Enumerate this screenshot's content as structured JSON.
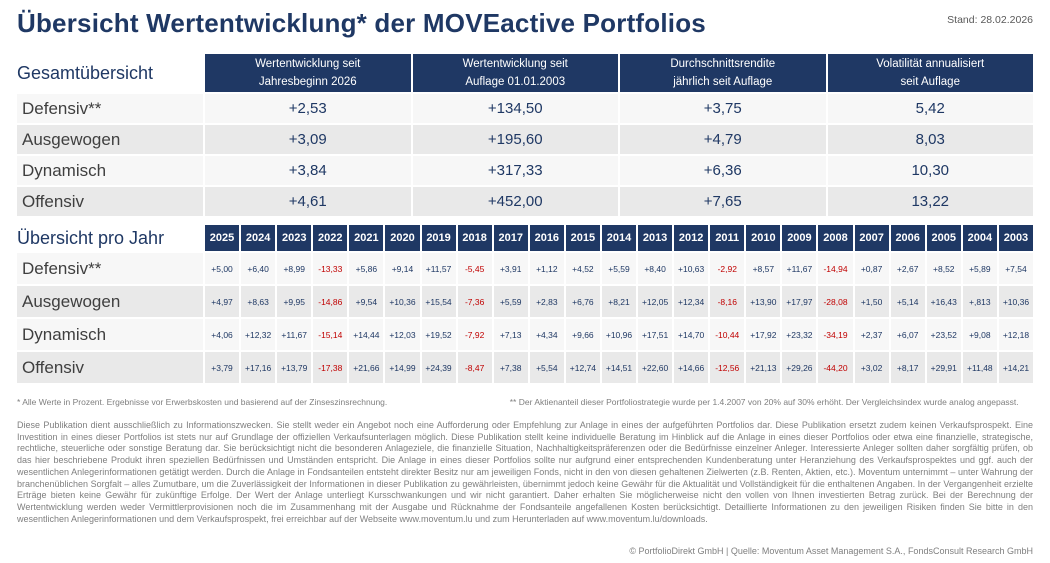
{
  "page": {
    "title": "Übersicht Wertentwicklung* der MOVEactive Portfolios",
    "stand": "Stand: 28.02.2026"
  },
  "colors": {
    "navy": "#1F3864",
    "negative_red": "#C00000",
    "row_light": "#F7F7F7",
    "row_dark": "#E9E9E9",
    "muted_text": "#7F7F7F"
  },
  "overview": {
    "section_label": "Gesamtübersicht",
    "columns": [
      {
        "line1": "Wertentwicklung seit",
        "line2": "Jahresbeginn 2026"
      },
      {
        "line1": "Wertentwicklung seit",
        "line2": "Auflage 01.01.2003"
      },
      {
        "line1": "Durchschnittsrendite",
        "line2": "jährlich seit Auflage"
      },
      {
        "line1": "Volatilität annualisiert",
        "line2": "seit Auflage"
      }
    ],
    "rows": [
      {
        "label": "Defensiv**",
        "values": [
          "+2,53",
          "+134,50",
          "+3,75",
          "5,42"
        ]
      },
      {
        "label": "Ausgewogen",
        "values": [
          "+3,09",
          "+195,60",
          "+4,79",
          "8,03"
        ]
      },
      {
        "label": "Dynamisch",
        "values": [
          "+3,84",
          "+317,33",
          "+6,36",
          "10,30"
        ]
      },
      {
        "label": "Offensiv",
        "values": [
          "+4,61",
          "+452,00",
          "+7,65",
          "13,22"
        ]
      }
    ]
  },
  "per_year": {
    "section_label": "Übersicht pro Jahr",
    "years": [
      "2025",
      "2024",
      "2023",
      "2022",
      "2021",
      "2020",
      "2019",
      "2018",
      "2017",
      "2016",
      "2015",
      "2014",
      "2013",
      "2012",
      "2011",
      "2010",
      "2009",
      "2008",
      "2007",
      "2006",
      "2005",
      "2004",
      "2003"
    ],
    "rows": [
      {
        "label": "Defensiv**",
        "values": [
          "+5,00",
          "+6,40",
          "+8,99",
          "-13,33",
          "+5,86",
          "+9,14",
          "+11,57",
          "-5,45",
          "+3,91",
          "+1,12",
          "+4,52",
          "+5,59",
          "+8,40",
          "+10,63",
          "-2,92",
          "+8,57",
          "+11,67",
          "-14,94",
          "+0,87",
          "+2,67",
          "+8,52",
          "+5,89",
          "+7,54"
        ]
      },
      {
        "label": "Ausgewogen",
        "values": [
          "+4,97",
          "+8,63",
          "+9,95",
          "-14,86",
          "+9,54",
          "+10,36",
          "+15,54",
          "-7,36",
          "+5,59",
          "+2,83",
          "+6,76",
          "+8,21",
          "+12,05",
          "+12,34",
          "-8,16",
          "+13,90",
          "+17,97",
          "-28,08",
          "+1,50",
          "+5,14",
          "+16,43",
          "+,813",
          "+10,36"
        ]
      },
      {
        "label": "Dynamisch",
        "values": [
          "+4,06",
          "+12,32",
          "+11,67",
          "-15,14",
          "+14,44",
          "+12,03",
          "+19,52",
          "-7,92",
          "+7,13",
          "+4,34",
          "+9,66",
          "+10,96",
          "+17,51",
          "+14,70",
          "-10,44",
          "+17,92",
          "+23,32",
          "-34,19",
          "+2,37",
          "+6,07",
          "+23,52",
          "+9,08",
          "+12,18"
        ]
      },
      {
        "label": "Offensiv",
        "values": [
          "+3,79",
          "+17,16",
          "+13,79",
          "-17,38",
          "+21,66",
          "+14,99",
          "+24,39",
          "-8,47",
          "+7,38",
          "+5,54",
          "+12,74",
          "+14,51",
          "+22,60",
          "+14,66",
          "-12,56",
          "+21,13",
          "+29,26",
          "-44,20",
          "+3,02",
          "+8,17",
          "+29,91",
          "+11,48",
          "+14,21"
        ]
      }
    ]
  },
  "footnotes": {
    "left": "* Alle Werte in Prozent. Ergebnisse vor Erwerbskosten und basierend auf der Zinseszinsrechnung.",
    "right": "** Der Aktienanteil dieser Portfoliostrategie wurde per 1.4.2007 von 20% auf 30% erhöht. Der Vergleichsindex wurde analog angepasst."
  },
  "disclaimer": "Diese Publikation dient ausschließlich zu Informationszwecken. Sie stellt weder ein Angebot noch eine Aufforderung oder Empfehlung zur Anlage in eines der aufgeführten Portfolios dar. Diese Publikation ersetzt zudem keinen Verkaufsprospekt. Eine Investition in eines dieser Portfolios ist stets nur auf Grundlage der offiziellen Verkaufsunterlagen möglich. Diese Publikation stellt keine individuelle Beratung im Hinblick auf die Anlage in eines dieser Portfolios oder etwa eine finanzielle, strategische, rechtliche, steuerliche oder sonstige Beratung dar. Sie berücksichtigt nicht die besonderen Anlageziele, die finanzielle Situation, Nachhaltigkeitspräferenzen oder die Bedürfnisse einzelner Anleger. Interessierte Anleger sollten daher sorgfältig prüfen, ob das hier beschriebene Produkt ihren speziellen Bedürfnissen und Umständen entspricht. Die Anlage in eines dieser Portfolios sollte nur aufgrund einer entsprechenden Kundenberatung unter Heranziehung des Verkaufsprospektes und ggf. auch der wesentlichen Anlegerinformationen getätigt werden. Durch die Anlage in Fondsanteilen entsteht direkter Besitz nur am jeweiligen Fonds, nicht in den von diesen gehaltenen Zielwerten (z.B. Renten, Aktien, etc.). Moventum unternimmt – unter Wahrung der branchenüblichen Sorgfalt – alles Zumutbare, um die Zuverlässigkeit der Informationen in dieser Publikation zu gewährleisten, übernimmt jedoch keine Gewähr für die Aktualität und Vollständigkeit für die enthaltenen Angaben. In der Vergangenheit erzielte Erträge bieten keine Gewähr für zukünftige Erfolge. Der Wert der Anlage unterliegt Kursschwankungen und wir nicht garantiert. Daher erhalten Sie möglicherweise nicht den vollen von Ihnen investierten Betrag zurück. Bei der Berechnung der Wertentwicklung werden weder Vermittlerprovisionen noch die im Zusammenhang mit der Ausgabe und Rücknahme der Fondsanteile angefallenen Kosten berücksichtigt. Detaillierte Informationen zu den jeweiligen Risiken finden Sie bitte in den wesentlichen Anlegerinformationen und dem Verkaufsprospekt, frei erreichbar auf der Webseite www.moventum.lu und zum Herunterladen auf www.moventum.lu/downloads.",
  "footer": "© PortfolioDirekt GmbH | Quelle: Moventum Asset Management S.A., FondsConsult Research GmbH"
}
